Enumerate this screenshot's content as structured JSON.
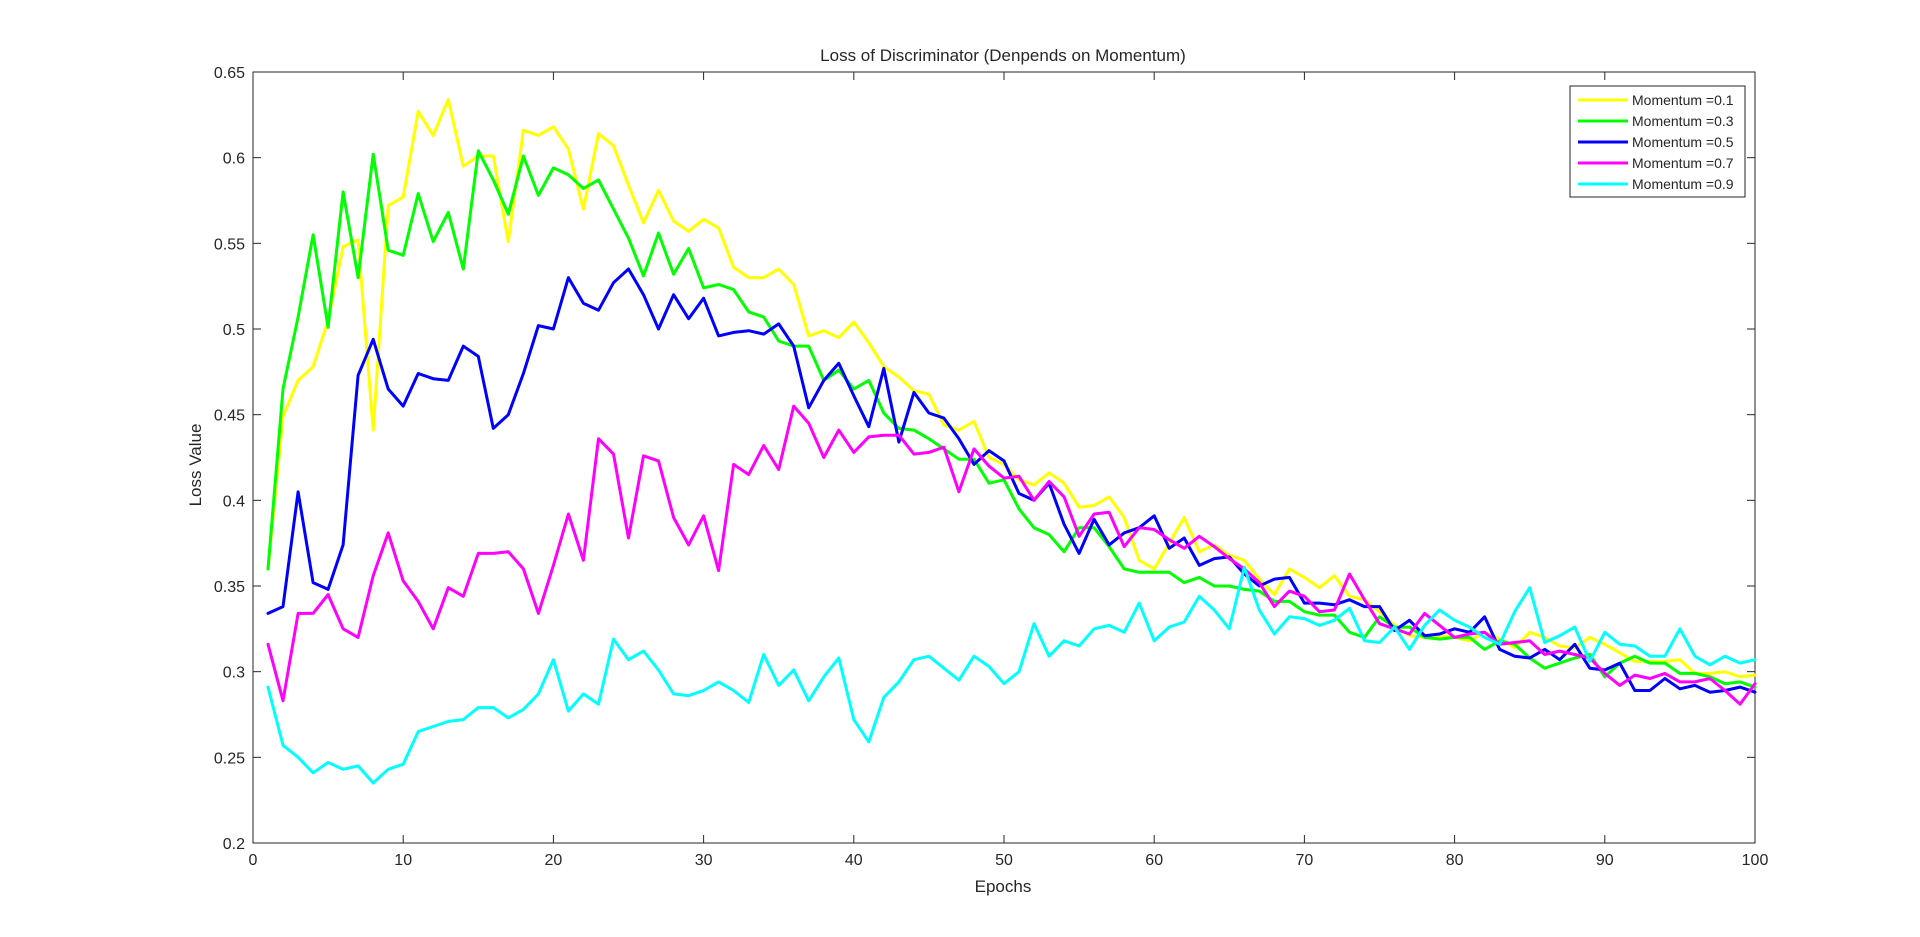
{
  "chart_data": {
    "type": "line",
    "title": "Loss of Discriminator (Denpends on Momentum)",
    "xlabel": "Epochs",
    "ylabel": "Loss Value",
    "xlim": [
      0,
      100
    ],
    "ylim": [
      0.2,
      0.65
    ],
    "xticks": [
      0,
      10,
      20,
      30,
      40,
      50,
      60,
      70,
      80,
      90,
      100
    ],
    "yticks": [
      0.2,
      0.25,
      0.3,
      0.35,
      0.4,
      0.45,
      0.5,
      0.55,
      0.6,
      0.65
    ],
    "ytick_labels": [
      "0.2",
      "0.25",
      "0.3",
      "0.35",
      "0.4",
      "0.45",
      "0.5",
      "0.55",
      "0.6",
      "0.65"
    ],
    "legend_position": "top-right",
    "grid": false,
    "x": [
      1,
      2,
      3,
      4,
      5,
      6,
      7,
      8,
      9,
      10,
      11,
      12,
      13,
      14,
      15,
      16,
      17,
      18,
      19,
      20,
      21,
      22,
      23,
      24,
      25,
      26,
      27,
      28,
      29,
      30,
      31,
      32,
      33,
      34,
      35,
      36,
      37,
      38,
      39,
      40,
      41,
      42,
      43,
      44,
      45,
      46,
      47,
      48,
      49,
      50,
      51,
      52,
      53,
      54,
      55,
      56,
      57,
      58,
      59,
      60,
      61,
      62,
      63,
      64,
      65,
      66,
      67,
      68,
      69,
      70,
      71,
      72,
      73,
      74,
      75,
      76,
      77,
      78,
      79,
      80,
      81,
      82,
      83,
      84,
      85,
      86,
      87,
      88,
      89,
      90,
      91,
      92,
      93,
      94,
      95,
      96,
      97,
      98,
      99,
      100
    ],
    "series": [
      {
        "name": "Momentum =0.1",
        "color": "#FFFF00",
        "values": [
          0.36,
          0.449,
          0.47,
          0.478,
          0.505,
          0.548,
          0.552,
          0.441,
          0.572,
          0.577,
          0.627,
          0.613,
          0.634,
          0.595,
          0.601,
          0.601,
          0.551,
          0.616,
          0.613,
          0.618,
          0.605,
          0.57,
          0.614,
          0.607,
          0.584,
          0.562,
          0.581,
          0.563,
          0.557,
          0.564,
          0.559,
          0.536,
          0.53,
          0.53,
          0.535,
          0.526,
          0.496,
          0.499,
          0.495,
          0.504,
          0.492,
          0.478,
          0.472,
          0.464,
          0.462,
          0.444,
          0.441,
          0.446,
          0.425,
          0.421,
          0.412,
          0.409,
          0.416,
          0.41,
          0.396,
          0.397,
          0.402,
          0.39,
          0.365,
          0.36,
          0.375,
          0.39,
          0.37,
          0.374,
          0.368,
          0.365,
          0.354,
          0.345,
          0.36,
          0.355,
          0.349,
          0.356,
          0.344,
          0.342,
          0.335,
          0.327,
          0.321,
          0.32,
          0.321,
          0.32,
          0.318,
          0.323,
          0.319,
          0.314,
          0.323,
          0.32,
          0.315,
          0.314,
          0.32,
          0.316,
          0.311,
          0.306,
          0.306,
          0.306,
          0.307,
          0.299,
          0.299,
          0.3,
          0.297,
          0.298
        ]
      },
      {
        "name": "Momentum =0.3",
        "color": "#00FF00",
        "values": [
          0.36,
          0.465,
          0.507,
          0.555,
          0.501,
          0.58,
          0.53,
          0.602,
          0.546,
          0.543,
          0.579,
          0.551,
          0.568,
          0.535,
          0.604,
          0.587,
          0.567,
          0.601,
          0.578,
          0.594,
          0.59,
          0.582,
          0.587,
          0.57,
          0.553,
          0.531,
          0.556,
          0.532,
          0.547,
          0.524,
          0.526,
          0.523,
          0.51,
          0.507,
          0.493,
          0.49,
          0.49,
          0.47,
          0.476,
          0.465,
          0.47,
          0.451,
          0.442,
          0.441,
          0.436,
          0.43,
          0.424,
          0.424,
          0.41,
          0.412,
          0.395,
          0.384,
          0.38,
          0.37,
          0.384,
          0.384,
          0.373,
          0.36,
          0.358,
          0.358,
          0.358,
          0.352,
          0.355,
          0.35,
          0.35,
          0.348,
          0.347,
          0.341,
          0.341,
          0.335,
          0.333,
          0.333,
          0.323,
          0.32,
          0.332,
          0.326,
          0.326,
          0.32,
          0.319,
          0.32,
          0.32,
          0.313,
          0.318,
          0.316,
          0.308,
          0.302,
          0.305,
          0.308,
          0.31,
          0.297,
          0.305,
          0.309,
          0.305,
          0.305,
          0.299,
          0.299,
          0.297,
          0.293,
          0.294,
          0.291
        ]
      },
      {
        "name": "Momentum =0.5",
        "color": "#0000FF",
        "values": [
          0.334,
          0.338,
          0.405,
          0.352,
          0.348,
          0.374,
          0.473,
          0.494,
          0.465,
          0.455,
          0.474,
          0.471,
          0.47,
          0.49,
          0.484,
          0.442,
          0.45,
          0.474,
          0.502,
          0.5,
          0.53,
          0.515,
          0.511,
          0.527,
          0.535,
          0.52,
          0.5,
          0.52,
          0.506,
          0.518,
          0.496,
          0.498,
          0.499,
          0.497,
          0.503,
          0.49,
          0.454,
          0.47,
          0.48,
          0.461,
          0.443,
          0.477,
          0.434,
          0.463,
          0.451,
          0.448,
          0.436,
          0.421,
          0.429,
          0.423,
          0.404,
          0.4,
          0.41,
          0.386,
          0.369,
          0.389,
          0.374,
          0.381,
          0.384,
          0.391,
          0.372,
          0.378,
          0.362,
          0.366,
          0.367,
          0.357,
          0.35,
          0.354,
          0.355,
          0.34,
          0.34,
          0.339,
          0.342,
          0.338,
          0.338,
          0.324,
          0.33,
          0.321,
          0.322,
          0.325,
          0.323,
          0.332,
          0.313,
          0.309,
          0.308,
          0.313,
          0.307,
          0.316,
          0.302,
          0.301,
          0.305,
          0.289,
          0.289,
          0.296,
          0.29,
          0.292,
          0.288,
          0.289,
          0.291,
          0.288
        ]
      },
      {
        "name": "Momentum =0.7",
        "color": "#FF00FF",
        "values": [
          0.316,
          0.283,
          0.334,
          0.334,
          0.345,
          0.325,
          0.32,
          0.356,
          0.381,
          0.353,
          0.341,
          0.325,
          0.349,
          0.344,
          0.369,
          0.369,
          0.37,
          0.36,
          0.334,
          0.362,
          0.392,
          0.365,
          0.436,
          0.427,
          0.378,
          0.426,
          0.423,
          0.39,
          0.374,
          0.391,
          0.359,
          0.421,
          0.415,
          0.432,
          0.418,
          0.455,
          0.445,
          0.425,
          0.441,
          0.428,
          0.437,
          0.438,
          0.438,
          0.427,
          0.428,
          0.431,
          0.405,
          0.43,
          0.42,
          0.413,
          0.414,
          0.4,
          0.411,
          0.402,
          0.379,
          0.392,
          0.393,
          0.373,
          0.384,
          0.383,
          0.377,
          0.372,
          0.379,
          0.373,
          0.366,
          0.36,
          0.352,
          0.338,
          0.347,
          0.344,
          0.335,
          0.336,
          0.357,
          0.342,
          0.328,
          0.325,
          0.322,
          0.334,
          0.327,
          0.32,
          0.322,
          0.323,
          0.316,
          0.317,
          0.318,
          0.31,
          0.312,
          0.31,
          0.308,
          0.299,
          0.292,
          0.298,
          0.296,
          0.299,
          0.294,
          0.294,
          0.296,
          0.289,
          0.281,
          0.293
        ]
      },
      {
        "name": "Momentum =0.9",
        "color": "#00FFFF",
        "values": [
          0.291,
          0.257,
          0.25,
          0.241,
          0.247,
          0.243,
          0.245,
          0.235,
          0.243,
          0.246,
          0.265,
          0.268,
          0.271,
          0.272,
          0.279,
          0.279,
          0.273,
          0.278,
          0.287,
          0.307,
          0.277,
          0.287,
          0.281,
          0.319,
          0.307,
          0.312,
          0.301,
          0.287,
          0.286,
          0.289,
          0.294,
          0.289,
          0.282,
          0.31,
          0.292,
          0.301,
          0.283,
          0.297,
          0.308,
          0.272,
          0.259,
          0.285,
          0.294,
          0.307,
          0.309,
          0.302,
          0.295,
          0.309,
          0.303,
          0.293,
          0.3,
          0.328,
          0.309,
          0.318,
          0.315,
          0.325,
          0.327,
          0.323,
          0.34,
          0.318,
          0.326,
          0.329,
          0.344,
          0.336,
          0.325,
          0.361,
          0.336,
          0.322,
          0.332,
          0.331,
          0.327,
          0.33,
          0.337,
          0.318,
          0.317,
          0.326,
          0.313,
          0.327,
          0.336,
          0.33,
          0.326,
          0.32,
          0.316,
          0.335,
          0.349,
          0.317,
          0.321,
          0.326,
          0.306,
          0.323,
          0.316,
          0.315,
          0.309,
          0.309,
          0.325,
          0.309,
          0.304,
          0.309,
          0.305,
          0.307
        ]
      }
    ]
  }
}
